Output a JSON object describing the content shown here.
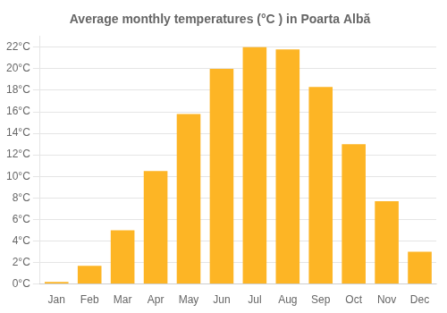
{
  "chart_data": {
    "type": "bar",
    "title": "Average monthly temperatures (°C ) in Poarta Albă",
    "categories": [
      "Jan",
      "Feb",
      "Mar",
      "Apr",
      "May",
      "Jun",
      "Jul",
      "Aug",
      "Sep",
      "Oct",
      "Nov",
      "Dec"
    ],
    "values": [
      0.2,
      1.7,
      5.0,
      10.5,
      15.8,
      20.0,
      22.0,
      21.8,
      18.3,
      13.0,
      7.7,
      3.0
    ],
    "color": "#FDB525",
    "ylim": [
      0,
      23
    ],
    "yticks": [
      {
        "value": 0,
        "label": "0°C"
      },
      {
        "value": 2,
        "label": "2°C"
      },
      {
        "value": 4,
        "label": "4°C"
      },
      {
        "value": 6,
        "label": "6°C"
      },
      {
        "value": 8,
        "label": "8°C"
      },
      {
        "value": 10,
        "label": "10°C"
      },
      {
        "value": 12,
        "label": "12°C"
      },
      {
        "value": 14,
        "label": "14°C"
      },
      {
        "value": 16,
        "label": "16°C"
      },
      {
        "value": 18,
        "label": "18°C"
      },
      {
        "value": 20,
        "label": "20°C"
      },
      {
        "value": 22,
        "label": "22°C"
      }
    ],
    "grid": true
  }
}
